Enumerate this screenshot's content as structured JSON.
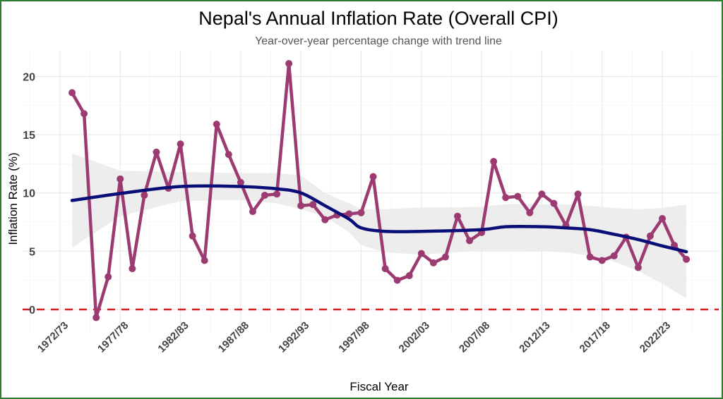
{
  "chart_data": {
    "type": "line",
    "title": "Nepal's Annual Inflation Rate (Overall CPI)",
    "subtitle": "Year-over-year percentage change with trend line",
    "xlabel": "Fiscal Year",
    "ylabel": "Inflation Rate (%)",
    "ylim": [
      -2,
      22.2
    ],
    "yticks": [
      0,
      5,
      10,
      15,
      20
    ],
    "xticks": [
      "1972/73",
      "1977/78",
      "1982/83",
      "1987/88",
      "1992/93",
      "1997/98",
      "2002/03",
      "2007/08",
      "2012/13",
      "2017/18",
      "2022/23"
    ],
    "grid": true,
    "legend": "none",
    "reference_line": {
      "y": 0,
      "style": "dashed",
      "color": "#cc2222"
    },
    "colors": {
      "series": "#9c3a72",
      "trend": "#0a0f78",
      "band": "#ebebeb",
      "frame": "#2e7d32"
    },
    "series": [
      {
        "x": [
          "1973/74",
          "1974/75",
          "1975/76",
          "1976/77",
          "1977/78",
          "1978/79",
          "1979/80",
          "1980/81",
          "1981/82",
          "1982/83",
          "1983/84",
          "1984/85",
          "1985/86",
          "1986/87",
          "1987/88",
          "1988/89",
          "1989/90",
          "1990/91",
          "1991/92",
          "1992/93",
          "1993/94",
          "1994/95",
          "1995/96",
          "1996/97",
          "1997/98",
          "1998/99",
          "1999/00",
          "2000/01",
          "2001/02",
          "2002/03",
          "2003/04",
          "2004/05",
          "2005/06",
          "2006/07",
          "2007/08",
          "2008/09",
          "2009/10",
          "2010/11",
          "2011/12",
          "2012/13",
          "2013/14",
          "2014/15",
          "2015/16",
          "2016/17",
          "2017/18",
          "2018/19",
          "2019/20",
          "2020/21",
          "2021/22",
          "2022/23",
          "2023/24",
          "2024/25"
        ],
        "values": [
          18.6,
          16.8,
          -0.7,
          2.8,
          11.2,
          3.5,
          9.8,
          13.5,
          10.4,
          14.2,
          6.3,
          4.2,
          15.9,
          13.3,
          10.9,
          8.4,
          9.8,
          9.9,
          21.1,
          8.9,
          9.0,
          7.7,
          8.1,
          8.2,
          8.3,
          11.4,
          3.5,
          2.5,
          2.9,
          4.8,
          4.0,
          4.5,
          8.0,
          5.9,
          6.6,
          12.7,
          9.6,
          9.7,
          8.3,
          9.9,
          9.1,
          7.2,
          9.9,
          4.5,
          4.2,
          4.6,
          6.2,
          3.6,
          6.3,
          7.8,
          5.5,
          4.3
        ]
      }
    ],
    "trend": {
      "x": [
        "1973/74",
        "1977/78",
        "1982/83",
        "1987/88",
        "1990/91",
        "1992/93",
        "1994/95",
        "1996/97",
        "1997/98",
        "1999/00",
        "2002/03",
        "2007/08",
        "2009/10",
        "2012/13",
        "2014/15",
        "2016/17",
        "2018/19",
        "2020/21",
        "2022/23",
        "2024/25"
      ],
      "values": [
        9.35,
        9.95,
        10.55,
        10.55,
        10.35,
        10.0,
        8.9,
        7.75,
        7.0,
        6.7,
        6.7,
        6.85,
        7.1,
        7.1,
        7.0,
        6.85,
        6.45,
        6.0,
        5.45,
        4.95
      ],
      "lower": [
        5.3,
        8.0,
        9.3,
        9.4,
        9.1,
        8.6,
        8.0,
        6.6,
        5.5,
        4.9,
        4.7,
        5.05,
        5.05,
        5.0,
        4.9,
        4.6,
        4.1,
        3.3,
        2.2,
        0.95
      ],
      "upper": [
        13.4,
        11.9,
        11.8,
        11.7,
        11.7,
        11.5,
        10.0,
        9.1,
        8.6,
        8.6,
        8.75,
        8.8,
        9.05,
        9.05,
        9.0,
        8.9,
        8.7,
        8.6,
        8.7,
        9.0
      ]
    }
  }
}
